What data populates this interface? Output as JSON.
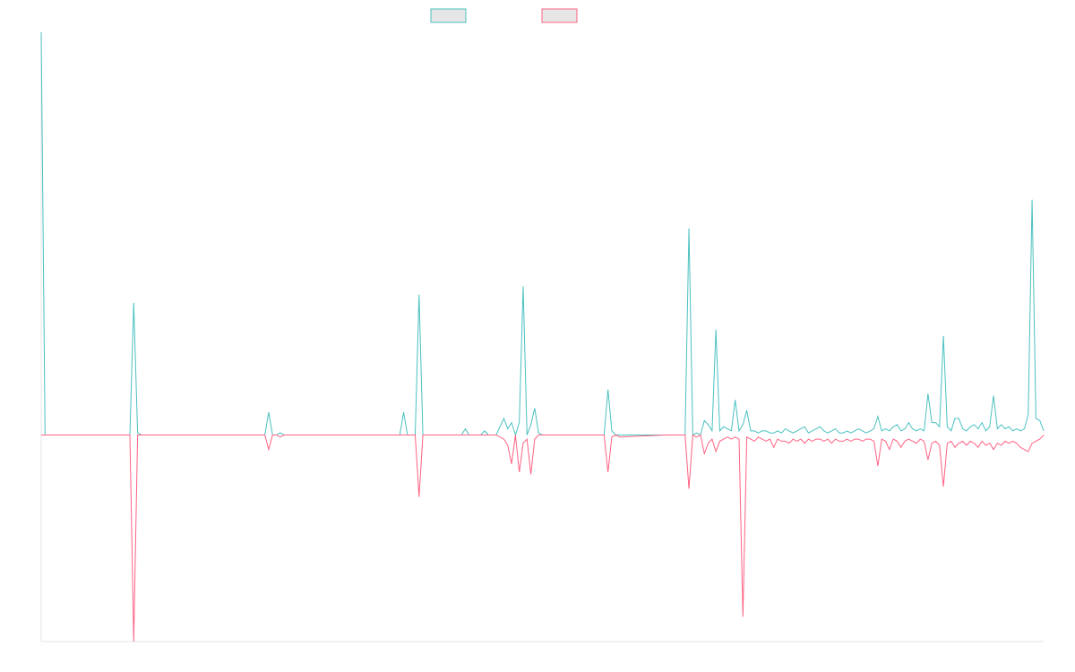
{
  "chart_data": {
    "type": "line",
    "title": "",
    "xlabel": "",
    "ylabel": "",
    "ylim": [
      -100,
      195
    ],
    "grid": false,
    "legend_position": "top-center",
    "series": [
      {
        "name": "",
        "color": "#4bc0c0",
        "fill": "#e6e6e6",
        "points": [
          [
            0,
            195
          ],
          [
            1,
            0
          ],
          [
            5,
            0
          ],
          [
            20,
            0
          ],
          [
            23,
            0
          ],
          [
            24,
            64
          ],
          [
            25,
            1
          ],
          [
            26,
            0
          ],
          [
            40,
            0
          ],
          [
            58,
            0
          ],
          [
            59,
            11
          ],
          [
            60,
            0
          ],
          [
            61,
            0
          ],
          [
            62,
            1
          ],
          [
            63,
            0
          ],
          [
            80,
            0
          ],
          [
            93,
            0
          ],
          [
            94,
            11
          ],
          [
            95,
            0
          ],
          [
            97,
            0
          ],
          [
            98,
            68
          ],
          [
            99,
            0
          ],
          [
            100,
            0
          ],
          [
            109,
            0
          ],
          [
            110,
            3
          ],
          [
            111,
            0
          ],
          [
            114,
            0
          ],
          [
            115,
            2
          ],
          [
            116,
            0
          ],
          [
            118,
            0
          ],
          [
            120,
            8
          ],
          [
            121,
            3
          ],
          [
            122,
            6
          ],
          [
            123,
            0
          ],
          [
            124,
            6
          ],
          [
            125,
            72
          ],
          [
            126,
            0
          ],
          [
            127,
            5
          ],
          [
            128,
            13
          ],
          [
            129,
            1
          ],
          [
            130,
            0
          ],
          [
            145,
            0
          ],
          [
            146,
            0
          ],
          [
            147,
            22
          ],
          [
            148,
            2
          ],
          [
            149,
            0
          ],
          [
            150,
            0
          ],
          [
            162,
            0
          ],
          [
            167,
            0
          ],
          [
            168,
            100
          ],
          [
            169,
            0
          ],
          [
            170,
            1
          ],
          [
            171,
            0
          ],
          [
            172,
            7
          ],
          [
            173,
            5
          ],
          [
            174,
            2
          ],
          [
            175,
            51
          ],
          [
            176,
            2
          ],
          [
            177,
            4
          ],
          [
            178,
            3
          ],
          [
            179,
            2
          ],
          [
            180,
            17
          ],
          [
            181,
            2
          ],
          [
            182,
            5
          ],
          [
            183,
            12
          ],
          [
            184,
            2
          ],
          [
            185,
            2
          ],
          [
            186,
            1
          ],
          [
            187,
            2
          ],
          [
            188,
            2
          ],
          [
            189,
            1
          ],
          [
            190,
            1
          ],
          [
            191,
            2
          ],
          [
            192,
            1
          ],
          [
            193,
            3
          ],
          [
            194,
            2
          ],
          [
            195,
            1
          ],
          [
            196,
            2
          ],
          [
            197,
            3
          ],
          [
            198,
            4
          ],
          [
            199,
            1
          ],
          [
            200,
            2
          ],
          [
            201,
            3
          ],
          [
            202,
            4
          ],
          [
            203,
            2
          ],
          [
            204,
            1
          ],
          [
            205,
            2
          ],
          [
            206,
            3
          ],
          [
            207,
            1
          ],
          [
            208,
            1
          ],
          [
            209,
            2
          ],
          [
            210,
            1
          ],
          [
            211,
            2
          ],
          [
            212,
            3
          ],
          [
            213,
            2
          ],
          [
            214,
            1
          ],
          [
            215,
            2
          ],
          [
            216,
            3
          ],
          [
            217,
            9
          ],
          [
            218,
            2
          ],
          [
            219,
            3
          ],
          [
            220,
            2
          ],
          [
            221,
            4
          ],
          [
            222,
            5
          ],
          [
            223,
            2
          ],
          [
            224,
            3
          ],
          [
            225,
            6
          ],
          [
            226,
            3
          ],
          [
            227,
            2
          ],
          [
            228,
            3
          ],
          [
            229,
            2
          ],
          [
            230,
            20
          ],
          [
            231,
            6
          ],
          [
            232,
            6
          ],
          [
            233,
            4
          ],
          [
            234,
            48
          ],
          [
            235,
            4
          ],
          [
            236,
            2
          ],
          [
            237,
            8
          ],
          [
            238,
            8
          ],
          [
            239,
            3
          ],
          [
            240,
            2
          ],
          [
            241,
            4
          ],
          [
            242,
            5
          ],
          [
            243,
            3
          ],
          [
            244,
            6
          ],
          [
            245,
            2
          ],
          [
            246,
            4
          ],
          [
            247,
            19
          ],
          [
            248,
            3
          ],
          [
            249,
            5
          ],
          [
            250,
            3
          ],
          [
            251,
            4
          ],
          [
            252,
            2
          ],
          [
            253,
            3
          ],
          [
            254,
            2
          ],
          [
            255,
            3
          ],
          [
            256,
            10
          ],
          [
            257,
            114
          ],
          [
            258,
            8
          ],
          [
            259,
            7
          ],
          [
            260,
            2
          ]
        ]
      },
      {
        "name": "",
        "color": "#ff6384",
        "fill": "#e6e6e6",
        "points": [
          [
            0,
            0
          ],
          [
            1,
            0
          ],
          [
            5,
            0
          ],
          [
            20,
            0
          ],
          [
            23,
            0
          ],
          [
            24,
            -100
          ],
          [
            25,
            0
          ],
          [
            26,
            0
          ],
          [
            40,
            0
          ],
          [
            58,
            0
          ],
          [
            59,
            -7
          ],
          [
            60,
            0
          ],
          [
            61,
            0
          ],
          [
            62,
            -1
          ],
          [
            63,
            0
          ],
          [
            80,
            0
          ],
          [
            93,
            0
          ],
          [
            94,
            0
          ],
          [
            95,
            0
          ],
          [
            97,
            0
          ],
          [
            98,
            -30
          ],
          [
            99,
            0
          ],
          [
            100,
            0
          ],
          [
            109,
            0
          ],
          [
            110,
            0
          ],
          [
            111,
            0
          ],
          [
            114,
            0
          ],
          [
            115,
            0
          ],
          [
            116,
            0
          ],
          [
            118,
            0
          ],
          [
            120,
            -2
          ],
          [
            121,
            -5
          ],
          [
            122,
            -14
          ],
          [
            123,
            0
          ],
          [
            124,
            -18
          ],
          [
            125,
            -4
          ],
          [
            126,
            -2
          ],
          [
            127,
            -19
          ],
          [
            128,
            -2
          ],
          [
            129,
            0
          ],
          [
            130,
            0
          ],
          [
            145,
            0
          ],
          [
            146,
            0
          ],
          [
            147,
            -18
          ],
          [
            148,
            -1
          ],
          [
            149,
            0
          ],
          [
            150,
            -1
          ],
          [
            162,
            0
          ],
          [
            167,
            0
          ],
          [
            168,
            -26
          ],
          [
            169,
            0
          ],
          [
            170,
            -1
          ],
          [
            171,
            0
          ],
          [
            172,
            -9
          ],
          [
            173,
            -4
          ],
          [
            174,
            -2
          ],
          [
            175,
            -8
          ],
          [
            176,
            -3
          ],
          [
            177,
            -2
          ],
          [
            178,
            -1
          ],
          [
            179,
            -2
          ],
          [
            180,
            -1
          ],
          [
            181,
            -2
          ],
          [
            182,
            -88
          ],
          [
            183,
            -1
          ],
          [
            184,
            -2
          ],
          [
            185,
            -3
          ],
          [
            186,
            -1
          ],
          [
            187,
            -2
          ],
          [
            188,
            -3
          ],
          [
            189,
            -2
          ],
          [
            190,
            -6
          ],
          [
            191,
            -2
          ],
          [
            192,
            -3
          ],
          [
            193,
            -3
          ],
          [
            194,
            -4
          ],
          [
            195,
            -2
          ],
          [
            196,
            -3
          ],
          [
            197,
            -2
          ],
          [
            198,
            -4
          ],
          [
            199,
            -2
          ],
          [
            200,
            -3
          ],
          [
            201,
            -2
          ],
          [
            202,
            -2
          ],
          [
            203,
            -3
          ],
          [
            204,
            -2
          ],
          [
            205,
            -4
          ],
          [
            206,
            -2
          ],
          [
            207,
            -3
          ],
          [
            208,
            -3
          ],
          [
            209,
            -2
          ],
          [
            210,
            -3
          ],
          [
            211,
            -2
          ],
          [
            212,
            -2
          ],
          [
            213,
            -3
          ],
          [
            214,
            -2
          ],
          [
            215,
            -2
          ],
          [
            216,
            -3
          ],
          [
            217,
            -15
          ],
          [
            218,
            -2
          ],
          [
            219,
            -3
          ],
          [
            220,
            -7
          ],
          [
            221,
            -2
          ],
          [
            222,
            -3
          ],
          [
            223,
            -6
          ],
          [
            224,
            -3
          ],
          [
            225,
            -2
          ],
          [
            226,
            -3
          ],
          [
            227,
            -4
          ],
          [
            228,
            -2
          ],
          [
            229,
            -3
          ],
          [
            230,
            -12
          ],
          [
            231,
            -4
          ],
          [
            232,
            -3
          ],
          [
            233,
            -5
          ],
          [
            234,
            -25
          ],
          [
            235,
            -4
          ],
          [
            236,
            -3
          ],
          [
            237,
            -6
          ],
          [
            238,
            -4
          ],
          [
            239,
            -3
          ],
          [
            240,
            -5
          ],
          [
            241,
            -3
          ],
          [
            242,
            -4
          ],
          [
            243,
            -6
          ],
          [
            244,
            -3
          ],
          [
            245,
            -5
          ],
          [
            246,
            -4
          ],
          [
            247,
            -7
          ],
          [
            248,
            -4
          ],
          [
            249,
            -5
          ],
          [
            250,
            -3
          ],
          [
            251,
            -4
          ],
          [
            252,
            -3
          ],
          [
            253,
            -4
          ],
          [
            254,
            -6
          ],
          [
            255,
            -7
          ],
          [
            256,
            -8
          ],
          [
            257,
            -4
          ],
          [
            258,
            -3
          ],
          [
            259,
            -2
          ],
          [
            260,
            0
          ]
        ]
      }
    ]
  }
}
